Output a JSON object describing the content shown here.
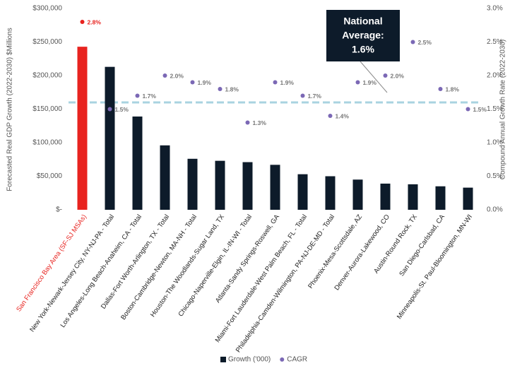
{
  "chart_data": {
    "type": "bar",
    "categories": [
      "San Francisco Bay Area (SF-SJ MSAs)",
      "New York-Newark-Jersey City, NY-NJ-PA - Total",
      "Los Angeles-Long Beach-Anaheim, CA - Total",
      "Dallas-Fort Worth-Arlington, TX - Total",
      "Boston-Cambridge-Newton, MA-NH - Total",
      "Houston-The Woodlands-Sugar Land, TX",
      "Chicago-Naperville-Elgin, IL-IN-WI - Total",
      "Atlanta-Sandy Springs-Roswell, GA",
      "Miami-Fort Lauderdale-West Palm Beach, FL - Total",
      "Philadelphia-Camden-Wilmington, PA-NJ-DE-MD - Total",
      "Phoenix-Mesa-Scottsdale, AZ",
      "Denver-Aurora-Lakewood, CO",
      "Austin-Round Rock, TX",
      "San Diego-Carlsbad, CA",
      "Minneapolis-St. Paul-Bloomington, MN-WI"
    ],
    "series": [
      {
        "name": "Growth ('000)",
        "type": "bar",
        "color": "#0d1b2a",
        "colors": [
          "#e8231f",
          "#0d1b2a",
          "#0d1b2a",
          "#0d1b2a",
          "#0d1b2a",
          "#0d1b2a",
          "#0d1b2a",
          "#0d1b2a",
          "#0d1b2a",
          "#0d1b2a",
          "#0d1b2a",
          "#0d1b2a",
          "#0d1b2a",
          "#0d1b2a",
          "#0d1b2a"
        ],
        "values": [
          243000,
          213000,
          139000,
          96000,
          76000,
          73000,
          71000,
          67000,
          53000,
          50000,
          45000,
          39000,
          38000,
          35000,
          33000
        ]
      },
      {
        "name": "CAGR",
        "type": "scatter",
        "axis": "y2",
        "color": "#7b68b5",
        "colors": [
          "#e8231f",
          "#7b68b5",
          "#7b68b5",
          "#7b68b5",
          "#7b68b5",
          "#7b68b5",
          "#7b68b5",
          "#7b68b5",
          "#7b68b5",
          "#7b68b5",
          "#7b68b5",
          "#7b68b5",
          "#7b68b5",
          "#7b68b5",
          "#7b68b5"
        ],
        "values": [
          2.8,
          1.5,
          1.7,
          2.0,
          1.9,
          1.8,
          1.3,
          1.9,
          1.7,
          1.4,
          1.9,
          2.0,
          2.5,
          1.8,
          1.5
        ],
        "value_labels": [
          "2.8%",
          "1.5%",
          "1.7%",
          "2.0%",
          "1.9%",
          "1.8%",
          "1.3%",
          "1.9%",
          "1.7%",
          "1.4%",
          "1.9%",
          "2.0%",
          "2.5%",
          "1.8%",
          "1.5%"
        ]
      }
    ],
    "ylabel": "Forecasted Real GDP Growth (2022-2030) $Millions",
    "y2label": "Compound Annual Growth Rate (2022-2030)",
    "ylim": [
      0,
      300000
    ],
    "yticks": [
      {
        "value": 0,
        "label": "$-"
      },
      {
        "value": 50000,
        "label": "$50,000"
      },
      {
        "value": 100000,
        "label": "$100,000"
      },
      {
        "value": 150000,
        "label": "$150,000"
      },
      {
        "value": 200000,
        "label": "$200,000"
      },
      {
        "value": 250000,
        "label": "$250,000"
      },
      {
        "value": 300000,
        "label": "$300,000"
      }
    ],
    "y2lim": [
      0,
      3
    ],
    "y2ticks": [
      {
        "value": 0,
        "label": "0.0%"
      },
      {
        "value": 0.5,
        "label": "0.5%"
      },
      {
        "value": 1,
        "label": "1.0%"
      },
      {
        "value": 1.5,
        "label": "1.5%"
      },
      {
        "value": 2,
        "label": "2.0%"
      },
      {
        "value": 2.5,
        "label": "2.5%"
      },
      {
        "value": 3,
        "label": "3.0%"
      }
    ],
    "reference_line": {
      "value": 1.6,
      "axis": "y2",
      "color": "#a9d3e0",
      "label_lines": [
        "National",
        "Average:",
        "1.6%"
      ]
    },
    "grid": false,
    "legend": "bottom"
  }
}
